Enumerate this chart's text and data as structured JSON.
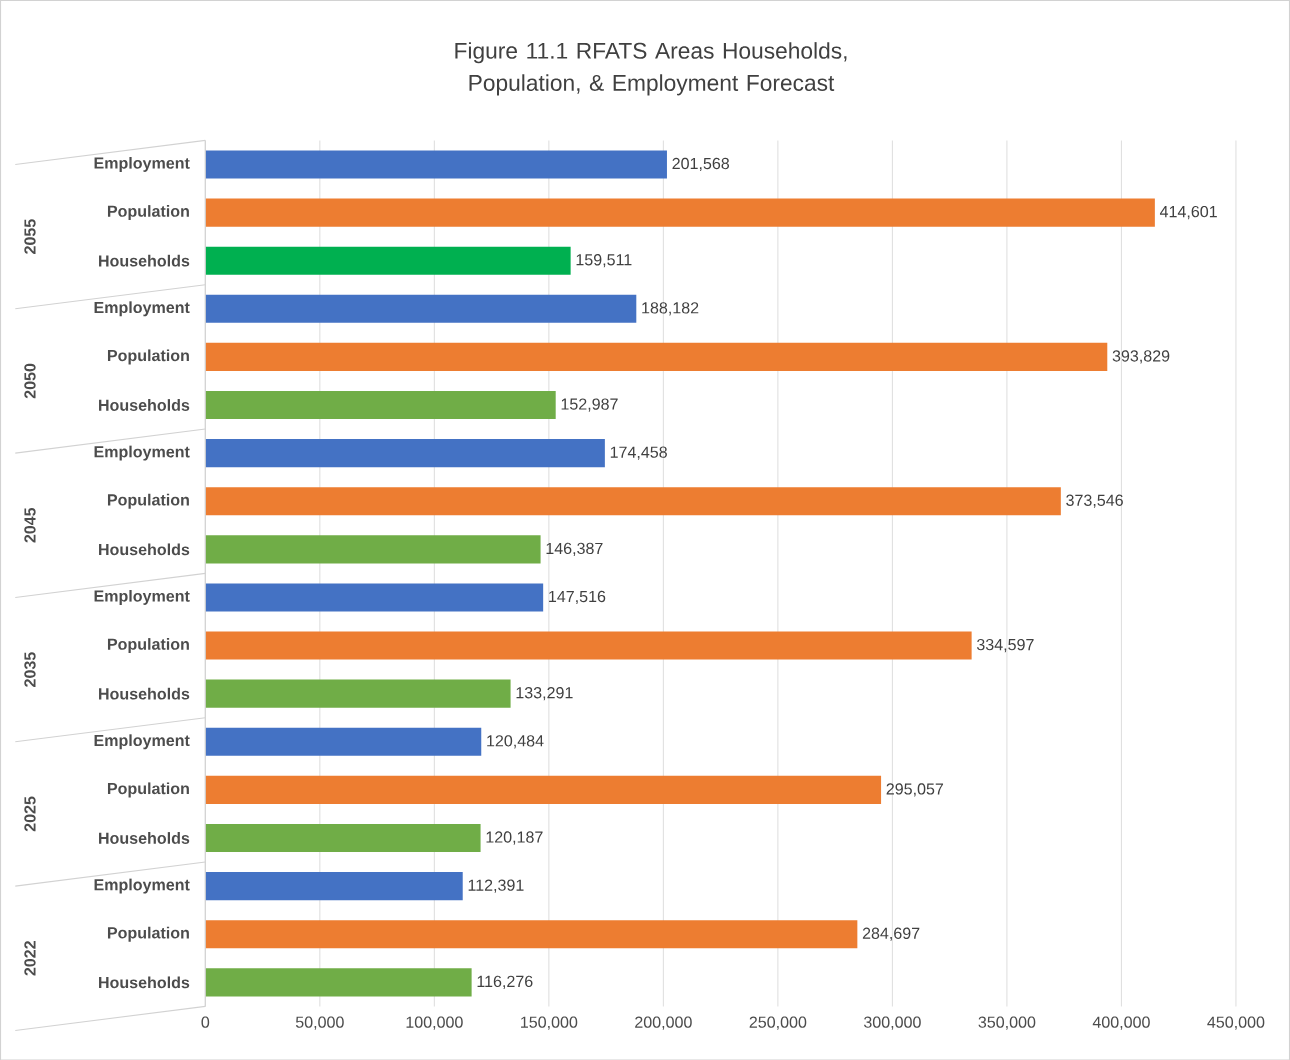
{
  "chart_data": {
    "type": "bar",
    "orientation": "horizontal",
    "title": "Figure 11.1 RFATS Areas Households, Population, & Employment Forecast",
    "categories": [
      "Employment",
      "Population",
      "Households",
      "Employment",
      "Population",
      "Households",
      "Employment",
      "Population",
      "Households",
      "Employment",
      "Population",
      "Households",
      "Employment",
      "Population",
      "Households",
      "Employment",
      "Population",
      "Households"
    ],
    "values": [
      201568,
      414601,
      159511,
      188182,
      393829,
      152987,
      174458,
      373546,
      146387,
      147516,
      334597,
      133291,
      120484,
      295057,
      120187,
      112391,
      284697,
      116276
    ],
    "value_labels": [
      "201,568",
      "414,601",
      "159,511",
      "188,182",
      "393,829",
      "152,987",
      "174,458",
      "373,546",
      "146,387",
      "147,516",
      "334,597",
      "133,291",
      "120,484",
      "295,057",
      "120,187",
      "112,391",
      "284,697",
      "116,276"
    ],
    "colors": [
      "#4472c4",
      "#ed7d31",
      "#00b050",
      "#4472c4",
      "#ed7d31",
      "#70ad47",
      "#4472c4",
      "#ed7d31",
      "#70ad47",
      "#4472c4",
      "#ed7d31",
      "#70ad47",
      "#4472c4",
      "#ed7d31",
      "#70ad47",
      "#4472c4",
      "#ed7d31",
      "#70ad47"
    ],
    "annotations": [
      "2055",
      "2050",
      "2045",
      "2035",
      "2025",
      "2022"
    ],
    "xlim": [
      0,
      450000
    ],
    "xticks": [
      0,
      {
        "value": 50000,
        "label": "50,000"
      },
      {
        "value": 100000,
        "label": "100,000"
      },
      {
        "value": 150000,
        "label": "150,000"
      },
      {
        "value": 200000,
        "label": "200,000"
      },
      {
        "value": 250000,
        "label": "250,000"
      },
      {
        "value": 300000,
        "label": "300,000"
      },
      {
        "value": 350000,
        "label": "350,000"
      },
      {
        "value": 400000,
        "label": "400,000"
      },
      {
        "value": 450000,
        "label": "450,000"
      }
    ],
    "grid": "x"
  }
}
